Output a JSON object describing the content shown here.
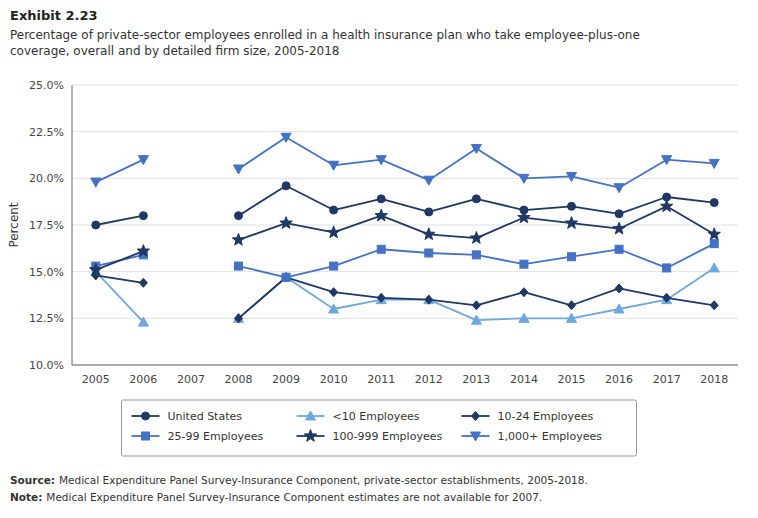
{
  "chart_data": {
    "type": "line",
    "title": "Exhibit 2.23",
    "subtitle": [
      "Percentage of private-sector employees enrolled in a health insurance plan who take employee-plus-one",
      "coverage, overall and by detailed firm size, 2005-2018"
    ],
    "ylabel": "Percent",
    "annotations": [
      {
        "label": "Source:",
        "text": "Medical Expenditure Panel Survey-Insurance Component, private-sector establishments, 2005-2018."
      },
      {
        "label": "Note:",
        "text": "Medical Expenditure Panel Survey-Insurance Component estimates are not available for 2007."
      }
    ],
    "categories": [
      "2005",
      "2006",
      "2007",
      "2008",
      "2009",
      "2010",
      "2011",
      "2012",
      "2013",
      "2014",
      "2015",
      "2016",
      "2017",
      "2018"
    ],
    "series": [
      {
        "name": "United States",
        "color": "#1F3864",
        "marker": "circle",
        "values": [
          17.5,
          18.0,
          null,
          18.0,
          19.6,
          18.3,
          18.9,
          18.2,
          18.9,
          18.3,
          18.5,
          18.1,
          19.0,
          18.7
        ]
      },
      {
        "name": "<10 Employees",
        "color": "#6fa8dc",
        "marker": "triangle-up",
        "values": [
          15.0,
          12.3,
          null,
          12.5,
          14.7,
          13.0,
          13.5,
          13.5,
          12.4,
          12.5,
          12.5,
          13.0,
          13.5,
          15.2
        ]
      },
      {
        "name": "10-24 Employees",
        "color": "#1F3864",
        "marker": "diamond",
        "values": [
          14.8,
          14.4,
          null,
          12.5,
          14.7,
          13.9,
          13.6,
          13.5,
          13.2,
          13.9,
          13.2,
          14.1,
          13.6,
          13.2
        ]
      },
      {
        "name": "25-99 Employees",
        "color": "#4472C4",
        "marker": "square",
        "values": [
          15.3,
          15.9,
          null,
          15.3,
          14.7,
          15.3,
          16.2,
          16.0,
          15.9,
          15.4,
          15.8,
          16.2,
          15.2,
          16.5
        ]
      },
      {
        "name": "100-999 Employees",
        "color": "#1F3864",
        "marker": "star",
        "values": [
          15.1,
          16.1,
          null,
          16.7,
          17.6,
          17.1,
          18.0,
          17.0,
          16.8,
          17.9,
          17.6,
          17.3,
          18.5,
          17.0
        ]
      },
      {
        "name": "1,000+ Employees",
        "color": "#4472C4",
        "marker": "triangle-down",
        "values": [
          19.8,
          21.0,
          null,
          20.5,
          22.2,
          20.7,
          21.0,
          19.9,
          21.6,
          20.0,
          20.1,
          19.5,
          21.0,
          20.8
        ]
      }
    ],
    "ylim": [
      10.0,
      25.0
    ],
    "yticks": [
      {
        "value": 10.0,
        "label": "10.0%"
      },
      {
        "value": 12.5,
        "label": "12.5%"
      },
      {
        "value": 15.0,
        "label": "15.0%"
      },
      {
        "value": 17.5,
        "label": "17.5%"
      },
      {
        "value": 20.0,
        "label": "20.0%"
      },
      {
        "value": 22.5,
        "label": "22.5%"
      },
      {
        "value": 25.0,
        "label": "25.0%"
      }
    ],
    "grid": true,
    "legend": "bottom"
  }
}
